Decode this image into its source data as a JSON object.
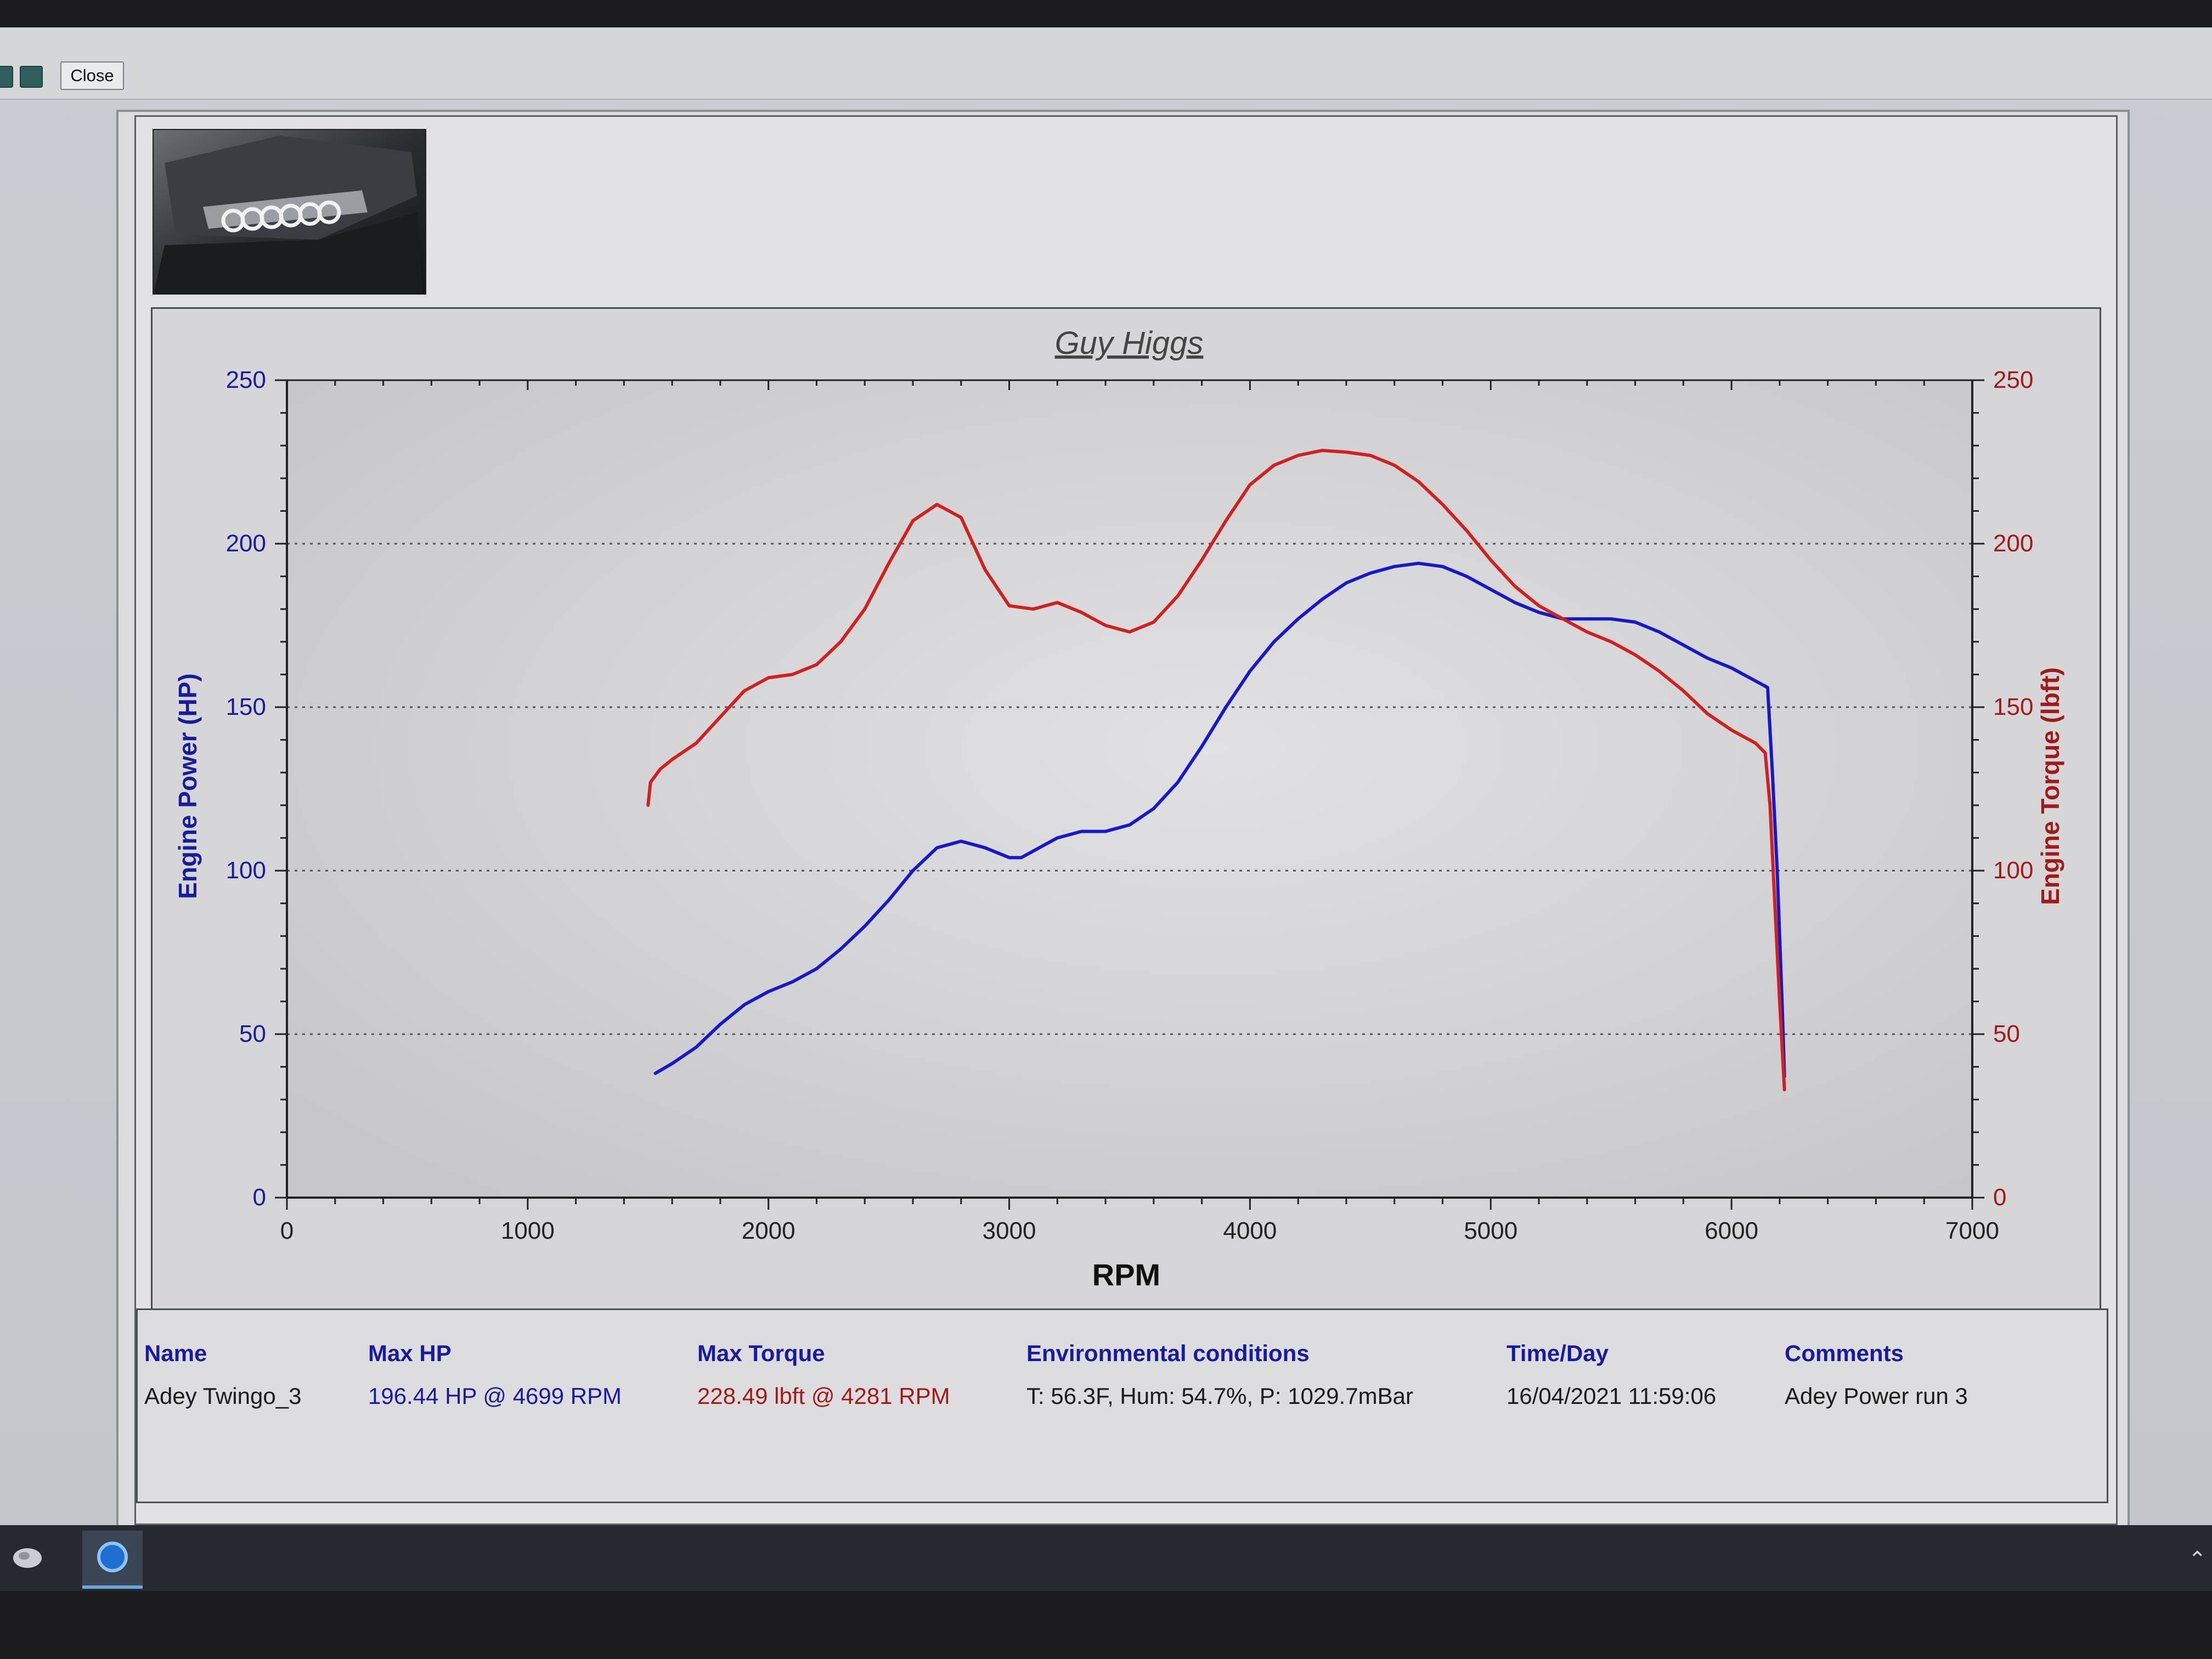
{
  "toolbar": {
    "close_label": "Close"
  },
  "chart_data": {
    "type": "line",
    "title": "Guy Higgs",
    "xlabel": "RPM",
    "ylabel_left": "Engine Power (HP)",
    "ylabel_right": "Engine Torque (lbft)",
    "xlim": [
      0,
      7000
    ],
    "ylim_left": [
      0,
      250
    ],
    "ylim_right": [
      0,
      250
    ],
    "x_ticks": [
      "0",
      "1000",
      "2000",
      "3000",
      "4000",
      "5000",
      "6000",
      "7000"
    ],
    "y_ticks_left": [
      "0",
      "50",
      "100",
      "150",
      "200",
      "250"
    ],
    "y_ticks_right": [
      "0",
      "50",
      "100",
      "150",
      "200",
      "250"
    ],
    "grid": "dotted horizontal at 50, 100, 150, 200",
    "series": [
      {
        "name": "Engine Power (HP)",
        "axis": "left",
        "color": "#1818c8",
        "points": [
          [
            1530,
            38
          ],
          [
            1600,
            41
          ],
          [
            1700,
            46
          ],
          [
            1800,
            53
          ],
          [
            1900,
            59
          ],
          [
            2000,
            63
          ],
          [
            2100,
            66
          ],
          [
            2200,
            70
          ],
          [
            2300,
            76
          ],
          [
            2400,
            83
          ],
          [
            2500,
            91
          ],
          [
            2600,
            100
          ],
          [
            2700,
            107
          ],
          [
            2800,
            109
          ],
          [
            2900,
            107
          ],
          [
            3000,
            104
          ],
          [
            3050,
            104
          ],
          [
            3100,
            106
          ],
          [
            3200,
            110
          ],
          [
            3300,
            112
          ],
          [
            3400,
            112
          ],
          [
            3500,
            114
          ],
          [
            3600,
            119
          ],
          [
            3700,
            127
          ],
          [
            3800,
            138
          ],
          [
            3900,
            150
          ],
          [
            4000,
            161
          ],
          [
            4100,
            170
          ],
          [
            4200,
            177
          ],
          [
            4300,
            183
          ],
          [
            4400,
            188
          ],
          [
            4500,
            191
          ],
          [
            4600,
            193
          ],
          [
            4700,
            194
          ],
          [
            4800,
            193
          ],
          [
            4900,
            190
          ],
          [
            5000,
            186
          ],
          [
            5100,
            182
          ],
          [
            5200,
            179
          ],
          [
            5300,
            177
          ],
          [
            5400,
            177
          ],
          [
            5500,
            177
          ],
          [
            5600,
            176
          ],
          [
            5700,
            173
          ],
          [
            5800,
            169
          ],
          [
            5900,
            165
          ],
          [
            6000,
            162
          ],
          [
            6100,
            158
          ],
          [
            6150,
            156
          ],
          [
            6170,
            130
          ],
          [
            6190,
            100
          ],
          [
            6210,
            60
          ],
          [
            6220,
            37
          ]
        ]
      },
      {
        "name": "Engine Torque (lbft)",
        "axis": "right",
        "color": "#d02020",
        "points": [
          [
            1500,
            120
          ],
          [
            1510,
            127
          ],
          [
            1550,
            131
          ],
          [
            1600,
            134
          ],
          [
            1700,
            139
          ],
          [
            1800,
            147
          ],
          [
            1900,
            155
          ],
          [
            2000,
            159
          ],
          [
            2100,
            160
          ],
          [
            2200,
            163
          ],
          [
            2300,
            170
          ],
          [
            2400,
            180
          ],
          [
            2500,
            194
          ],
          [
            2600,
            207
          ],
          [
            2700,
            212
          ],
          [
            2800,
            208
          ],
          [
            2900,
            192
          ],
          [
            3000,
            181
          ],
          [
            3100,
            180
          ],
          [
            3200,
            182
          ],
          [
            3300,
            179
          ],
          [
            3400,
            175
          ],
          [
            3500,
            173
          ],
          [
            3600,
            176
          ],
          [
            3700,
            184
          ],
          [
            3800,
            195
          ],
          [
            3900,
            207
          ],
          [
            4000,
            218
          ],
          [
            4100,
            224
          ],
          [
            4200,
            227
          ],
          [
            4300,
            228.5
          ],
          [
            4400,
            228
          ],
          [
            4500,
            227
          ],
          [
            4600,
            224
          ],
          [
            4700,
            219
          ],
          [
            4800,
            212
          ],
          [
            4900,
            204
          ],
          [
            5000,
            195
          ],
          [
            5100,
            187
          ],
          [
            5200,
            181
          ],
          [
            5300,
            177
          ],
          [
            5400,
            173
          ],
          [
            5500,
            170
          ],
          [
            5600,
            166
          ],
          [
            5700,
            161
          ],
          [
            5800,
            155
          ],
          [
            5900,
            148
          ],
          [
            6000,
            143
          ],
          [
            6100,
            139
          ],
          [
            6140,
            136
          ],
          [
            6160,
            120
          ],
          [
            6180,
            90
          ],
          [
            6200,
            60
          ],
          [
            6220,
            33
          ]
        ]
      }
    ]
  },
  "info": {
    "name_head": "Name",
    "name_val": "Adey Twingo_3",
    "maxhp_head": "Max HP",
    "maxhp_val": "196.44 HP @ 4699 RPM",
    "maxtq_head": "Max Torque",
    "maxtq_val": "228.49 lbft @ 4281 RPM",
    "env_head": "Environmental conditions",
    "env_val": "T: 56.3F, Hum: 54.7%, P: 1029.7mBar",
    "time_head": "Time/Day",
    "time_val": "16/04/2021 11:59:06",
    "comments_head": "Comments",
    "comments_val": "Adey Power run 3"
  },
  "colors": {
    "power": "#1818c8",
    "torque": "#d02020",
    "label_blue": "#1a1a9c",
    "label_red": "#a11a1a"
  },
  "icons": {
    "taskbar_app": "dyno-app-icon",
    "taskbar_start": "start-icon",
    "toolbar_square": "toolbar-square-icon"
  }
}
